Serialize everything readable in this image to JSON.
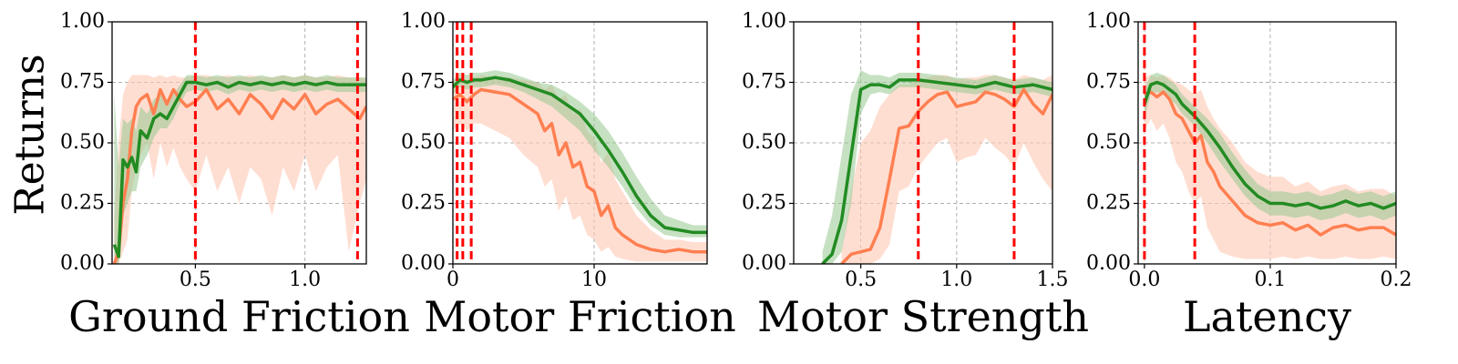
{
  "figure": {
    "ylabel": "Returns"
  },
  "colors": {
    "green": "#228b22",
    "green_band": "#98c98f",
    "orange": "#ff7f50",
    "orange_band": "#ffc8b4",
    "vline": "#ff0000",
    "grid": "#b0b0b0"
  },
  "chart_data": [
    {
      "type": "line",
      "xlabel": "Ground Friction",
      "ylabel": "Returns",
      "xlim": [
        0.12,
        1.28
      ],
      "ylim": [
        0,
        1
      ],
      "xticks": [
        0.5,
        1.0
      ],
      "xtick_labels": [
        "0.5",
        "1.0"
      ],
      "yticks": [
        0,
        0.25,
        0.5,
        0.75,
        1.0
      ],
      "ytick_labels": [
        "0.00",
        "0.25",
        "0.50",
        "0.75",
        "1.00"
      ],
      "grid": true,
      "vlines": [
        0.5,
        1.24
      ],
      "series": [
        {
          "color": "green",
          "x": [
            0.13,
            0.15,
            0.17,
            0.19,
            0.21,
            0.23,
            0.25,
            0.28,
            0.31,
            0.34,
            0.37,
            0.4,
            0.43,
            0.46,
            0.5,
            0.55,
            0.6,
            0.65,
            0.7,
            0.75,
            0.8,
            0.85,
            0.9,
            0.95,
            1.0,
            1.05,
            1.1,
            1.15,
            1.2,
            1.25,
            1.28
          ],
          "y": [
            0.08,
            0.03,
            0.43,
            0.4,
            0.44,
            0.38,
            0.55,
            0.52,
            0.6,
            0.62,
            0.6,
            0.65,
            0.7,
            0.75,
            0.75,
            0.74,
            0.75,
            0.73,
            0.75,
            0.74,
            0.75,
            0.74,
            0.75,
            0.74,
            0.75,
            0.74,
            0.75,
            0.74,
            0.74,
            0.74,
            0.74
          ],
          "lower": [
            0.0,
            0.0,
            0.2,
            0.25,
            0.3,
            0.3,
            0.4,
            0.45,
            0.52,
            0.56,
            0.56,
            0.6,
            0.66,
            0.71,
            0.72,
            0.71,
            0.72,
            0.7,
            0.72,
            0.71,
            0.72,
            0.71,
            0.72,
            0.71,
            0.72,
            0.71,
            0.72,
            0.71,
            0.71,
            0.71,
            0.71
          ],
          "upper": [
            0.7,
            0.4,
            0.6,
            0.58,
            0.6,
            0.55,
            0.65,
            0.62,
            0.68,
            0.7,
            0.68,
            0.7,
            0.74,
            0.78,
            0.78,
            0.77,
            0.78,
            0.77,
            0.78,
            0.77,
            0.78,
            0.77,
            0.78,
            0.77,
            0.78,
            0.77,
            0.78,
            0.77,
            0.77,
            0.77,
            0.77
          ]
        },
        {
          "color": "orange",
          "x": [
            0.13,
            0.15,
            0.17,
            0.19,
            0.21,
            0.23,
            0.25,
            0.28,
            0.31,
            0.34,
            0.37,
            0.4,
            0.43,
            0.46,
            0.5,
            0.55,
            0.6,
            0.65,
            0.7,
            0.75,
            0.8,
            0.85,
            0.9,
            0.95,
            1.0,
            1.05,
            1.1,
            1.15,
            1.2,
            1.25,
            1.28
          ],
          "y": [
            0.0,
            0.05,
            0.25,
            0.35,
            0.55,
            0.65,
            0.68,
            0.7,
            0.62,
            0.72,
            0.66,
            0.72,
            0.68,
            0.65,
            0.67,
            0.72,
            0.64,
            0.68,
            0.62,
            0.7,
            0.66,
            0.6,
            0.68,
            0.64,
            0.7,
            0.62,
            0.66,
            0.68,
            0.64,
            0.6,
            0.65
          ],
          "lower": [
            0.0,
            0.0,
            0.05,
            0.1,
            0.3,
            0.4,
            0.45,
            0.5,
            0.35,
            0.5,
            0.4,
            0.48,
            0.4,
            0.35,
            0.3,
            0.45,
            0.3,
            0.4,
            0.25,
            0.4,
            0.35,
            0.2,
            0.4,
            0.3,
            0.45,
            0.3,
            0.4,
            0.45,
            0.05,
            0.25,
            0.35
          ],
          "upper": [
            0.2,
            0.5,
            0.7,
            0.75,
            0.78,
            0.78,
            0.78,
            0.78,
            0.77,
            0.78,
            0.77,
            0.78,
            0.77,
            0.77,
            0.78,
            0.78,
            0.77,
            0.78,
            0.77,
            0.78,
            0.77,
            0.77,
            0.78,
            0.77,
            0.78,
            0.77,
            0.77,
            0.78,
            0.77,
            0.77,
            0.77
          ]
        }
      ]
    },
    {
      "type": "line",
      "xlabel": "Motor Friction",
      "ylabel": "",
      "xlim": [
        0,
        18
      ],
      "ylim": [
        0,
        1
      ],
      "xticks": [
        0,
        10
      ],
      "xtick_labels": [
        "0",
        "10"
      ],
      "yticks": [
        0,
        0.25,
        0.5,
        0.75,
        1.0
      ],
      "ytick_labels": [
        "0.00",
        "0.25",
        "0.50",
        "0.75",
        "1.00"
      ],
      "grid": true,
      "vlines": [
        0.3,
        0.7,
        1.3
      ],
      "series": [
        {
          "color": "green",
          "x": [
            0,
            0.5,
            1,
            1.5,
            2,
            3,
            4,
            5,
            6,
            7,
            8,
            9,
            10,
            11,
            12,
            13,
            14,
            15,
            16,
            17,
            18
          ],
          "y": [
            0.73,
            0.76,
            0.75,
            0.76,
            0.76,
            0.77,
            0.76,
            0.74,
            0.72,
            0.7,
            0.66,
            0.62,
            0.55,
            0.47,
            0.38,
            0.28,
            0.2,
            0.15,
            0.14,
            0.13,
            0.13
          ],
          "lower": [
            0.7,
            0.73,
            0.72,
            0.73,
            0.73,
            0.74,
            0.73,
            0.71,
            0.68,
            0.65,
            0.6,
            0.55,
            0.47,
            0.4,
            0.32,
            0.23,
            0.16,
            0.12,
            0.11,
            0.11,
            0.11
          ],
          "upper": [
            0.76,
            0.79,
            0.78,
            0.79,
            0.79,
            0.8,
            0.79,
            0.77,
            0.75,
            0.74,
            0.71,
            0.67,
            0.62,
            0.55,
            0.46,
            0.36,
            0.27,
            0.2,
            0.18,
            0.16,
            0.16
          ]
        },
        {
          "color": "orange",
          "x": [
            0,
            0.5,
            1,
            1.5,
            2,
            3,
            4,
            5,
            6,
            6.5,
            7,
            7.5,
            8,
            8.5,
            9,
            9.5,
            10,
            10.5,
            11,
            11.5,
            12,
            13,
            14,
            15,
            16,
            17,
            18
          ],
          "y": [
            0.68,
            0.7,
            0.67,
            0.7,
            0.72,
            0.71,
            0.7,
            0.66,
            0.62,
            0.55,
            0.58,
            0.45,
            0.5,
            0.4,
            0.42,
            0.32,
            0.3,
            0.2,
            0.24,
            0.15,
            0.12,
            0.08,
            0.06,
            0.05,
            0.06,
            0.05,
            0.05
          ],
          "lower": [
            0.55,
            0.58,
            0.55,
            0.58,
            0.58,
            0.55,
            0.52,
            0.45,
            0.4,
            0.32,
            0.35,
            0.22,
            0.28,
            0.18,
            0.2,
            0.12,
            0.1,
            0.05,
            0.07,
            0.03,
            0.02,
            0.01,
            0.01,
            0.01,
            0.01,
            0.01,
            0.01
          ],
          "upper": [
            0.76,
            0.77,
            0.76,
            0.77,
            0.78,
            0.77,
            0.77,
            0.76,
            0.75,
            0.72,
            0.74,
            0.68,
            0.7,
            0.62,
            0.64,
            0.55,
            0.52,
            0.42,
            0.46,
            0.35,
            0.3,
            0.2,
            0.14,
            0.1,
            0.1,
            0.09,
            0.09
          ]
        }
      ]
    },
    {
      "type": "line",
      "xlabel": "Motor Strength",
      "ylabel": "",
      "xlim": [
        0.15,
        1.5
      ],
      "ylim": [
        0,
        1
      ],
      "xticks": [
        0.5,
        1.0,
        1.5
      ],
      "xtick_labels": [
        "0.5",
        "1.0",
        "1.5"
      ],
      "yticks": [
        0,
        0.25,
        0.5,
        0.75,
        1.0
      ],
      "ytick_labels": [
        "0.00",
        "0.25",
        "0.50",
        "0.75",
        "1.00"
      ],
      "grid": true,
      "vlines": [
        0.8,
        1.3
      ],
      "series": [
        {
          "color": "green",
          "x": [
            0.3,
            0.35,
            0.4,
            0.45,
            0.5,
            0.55,
            0.6,
            0.65,
            0.7,
            0.75,
            0.8,
            0.9,
            1.0,
            1.1,
            1.2,
            1.3,
            1.4,
            1.5
          ],
          "y": [
            0.0,
            0.04,
            0.18,
            0.45,
            0.72,
            0.74,
            0.74,
            0.73,
            0.76,
            0.76,
            0.76,
            0.75,
            0.74,
            0.73,
            0.75,
            0.73,
            0.74,
            0.72
          ],
          "lower": [
            0.0,
            0.0,
            0.05,
            0.25,
            0.62,
            0.7,
            0.71,
            0.7,
            0.73,
            0.73,
            0.73,
            0.72,
            0.71,
            0.7,
            0.72,
            0.7,
            0.71,
            0.69
          ],
          "upper": [
            0.05,
            0.2,
            0.45,
            0.7,
            0.8,
            0.78,
            0.78,
            0.77,
            0.79,
            0.79,
            0.79,
            0.78,
            0.77,
            0.76,
            0.78,
            0.76,
            0.77,
            0.75
          ]
        },
        {
          "color": "orange",
          "x": [
            0.4,
            0.45,
            0.5,
            0.55,
            0.6,
            0.65,
            0.7,
            0.75,
            0.8,
            0.85,
            0.9,
            0.95,
            1.0,
            1.05,
            1.1,
            1.15,
            1.2,
            1.25,
            1.3,
            1.35,
            1.4,
            1.45,
            1.5
          ],
          "y": [
            0.0,
            0.04,
            0.05,
            0.06,
            0.15,
            0.35,
            0.56,
            0.57,
            0.63,
            0.67,
            0.7,
            0.71,
            0.65,
            0.66,
            0.67,
            0.71,
            0.7,
            0.68,
            0.65,
            0.72,
            0.66,
            0.62,
            0.7
          ],
          "lower": [
            0.0,
            0.0,
            0.0,
            0.0,
            0.02,
            0.08,
            0.3,
            0.32,
            0.4,
            0.45,
            0.5,
            0.52,
            0.42,
            0.44,
            0.45,
            0.52,
            0.48,
            0.45,
            0.4,
            0.5,
            0.42,
            0.35,
            0.3
          ],
          "upper": [
            0.05,
            0.3,
            0.5,
            0.55,
            0.65,
            0.7,
            0.74,
            0.74,
            0.76,
            0.77,
            0.78,
            0.78,
            0.76,
            0.77,
            0.77,
            0.78,
            0.78,
            0.77,
            0.76,
            0.78,
            0.77,
            0.76,
            0.78
          ]
        }
      ]
    },
    {
      "type": "line",
      "xlabel": "Latency",
      "ylabel": "",
      "xlim": [
        -0.005,
        0.2
      ],
      "ylim": [
        0,
        1
      ],
      "xticks": [
        0.0,
        0.1,
        0.2
      ],
      "xtick_labels": [
        "0.0",
        "0.1",
        "0.2"
      ],
      "yticks": [
        0,
        0.25,
        0.5,
        0.75,
        1.0
      ],
      "ytick_labels": [
        "0.00",
        "0.25",
        "0.50",
        "0.75",
        "1.00"
      ],
      "grid": true,
      "vlines": [
        0.0,
        0.04
      ],
      "series": [
        {
          "color": "green",
          "x": [
            0.0,
            0.005,
            0.01,
            0.015,
            0.02,
            0.025,
            0.03,
            0.04,
            0.05,
            0.06,
            0.07,
            0.08,
            0.09,
            0.1,
            0.11,
            0.12,
            0.13,
            0.14,
            0.15,
            0.16,
            0.17,
            0.18,
            0.19,
            0.2
          ],
          "y": [
            0.66,
            0.74,
            0.75,
            0.74,
            0.72,
            0.7,
            0.66,
            0.61,
            0.55,
            0.48,
            0.4,
            0.33,
            0.28,
            0.25,
            0.25,
            0.24,
            0.25,
            0.23,
            0.24,
            0.26,
            0.24,
            0.25,
            0.23,
            0.25
          ],
          "lower": [
            0.6,
            0.7,
            0.71,
            0.7,
            0.68,
            0.66,
            0.62,
            0.57,
            0.5,
            0.42,
            0.35,
            0.28,
            0.23,
            0.2,
            0.2,
            0.19,
            0.2,
            0.18,
            0.19,
            0.21,
            0.19,
            0.2,
            0.18,
            0.2
          ],
          "upper": [
            0.72,
            0.78,
            0.79,
            0.78,
            0.76,
            0.74,
            0.7,
            0.65,
            0.6,
            0.54,
            0.46,
            0.39,
            0.33,
            0.3,
            0.3,
            0.29,
            0.3,
            0.28,
            0.29,
            0.31,
            0.29,
            0.3,
            0.28,
            0.3
          ]
        },
        {
          "color": "orange",
          "x": [
            0.0,
            0.005,
            0.01,
            0.015,
            0.02,
            0.025,
            0.03,
            0.035,
            0.04,
            0.045,
            0.05,
            0.055,
            0.06,
            0.07,
            0.08,
            0.09,
            0.1,
            0.11,
            0.12,
            0.13,
            0.14,
            0.15,
            0.16,
            0.17,
            0.18,
            0.19,
            0.2
          ],
          "y": [
            0.7,
            0.71,
            0.69,
            0.71,
            0.68,
            0.62,
            0.6,
            0.55,
            0.5,
            0.53,
            0.42,
            0.38,
            0.32,
            0.26,
            0.2,
            0.17,
            0.16,
            0.17,
            0.14,
            0.16,
            0.12,
            0.15,
            0.16,
            0.14,
            0.15,
            0.15,
            0.12
          ],
          "lower": [
            0.55,
            0.6,
            0.55,
            0.58,
            0.52,
            0.42,
            0.38,
            0.3,
            0.25,
            0.28,
            0.15,
            0.1,
            0.05,
            0.03,
            0.02,
            0.02,
            0.02,
            0.03,
            0.02,
            0.03,
            0.02,
            0.02,
            0.03,
            0.02,
            0.02,
            0.03,
            0.02
          ],
          "upper": [
            0.77,
            0.78,
            0.77,
            0.78,
            0.77,
            0.75,
            0.74,
            0.72,
            0.7,
            0.72,
            0.65,
            0.6,
            0.56,
            0.5,
            0.42,
            0.38,
            0.36,
            0.36,
            0.32,
            0.34,
            0.3,
            0.32,
            0.33,
            0.3,
            0.31,
            0.31,
            0.28
          ]
        }
      ]
    }
  ]
}
